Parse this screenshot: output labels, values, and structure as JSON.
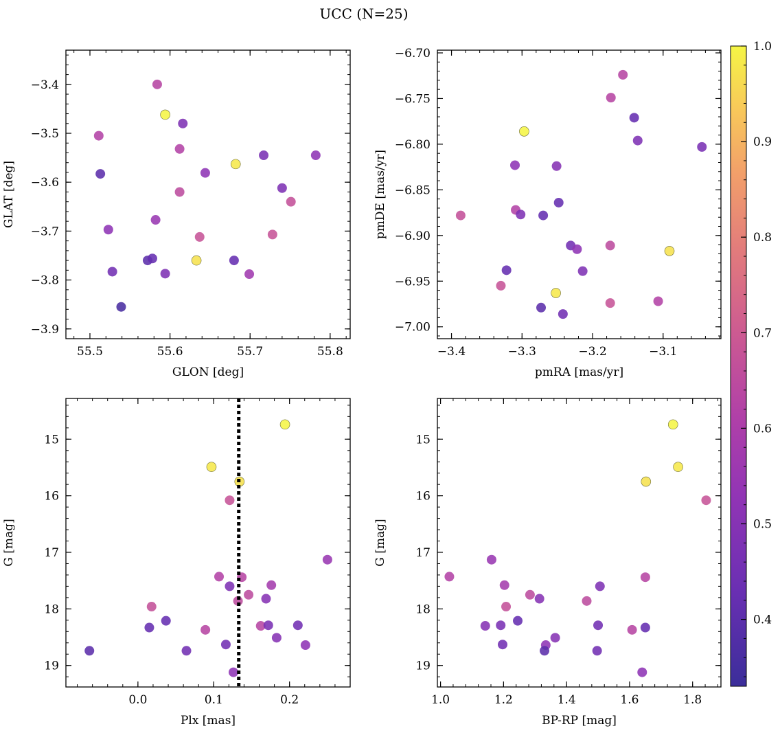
{
  "figure": {
    "title": "UCC (N=25)"
  },
  "colorbar": {
    "range": [
      0.33,
      1.0
    ],
    "ticks": [
      0.4,
      0.5,
      0.6,
      0.7,
      0.8,
      0.9,
      1.0
    ],
    "tick_labels": [
      "0.4",
      "0.5",
      "0.6",
      "0.7",
      "0.8",
      "0.9",
      "1.0"
    ],
    "colormap": "plasma"
  },
  "chart_data": [
    {
      "type": "scatter",
      "xlabel": "GLON [deg]",
      "ylabel": "GLAT [deg]",
      "xlim": [
        55.47,
        55.825
      ],
      "ylim": [
        -3.92,
        -3.33
      ],
      "y_inverted": false,
      "xticks": [
        55.5,
        55.6,
        55.7,
        55.8
      ],
      "xtick_labels": [
        "55.5",
        "55.6",
        "55.7",
        "55.8"
      ],
      "yticks": [
        -3.9,
        -3.8,
        -3.7,
        -3.6,
        -3.5,
        -3.4
      ],
      "ytick_labels": [
        "−3.9",
        "−3.8",
        "−3.7",
        "−3.6",
        "−3.5",
        "−3.4"
      ],
      "points": [
        {
          "x": 55.584,
          "y": -3.4,
          "c": 0.63
        },
        {
          "x": 55.594,
          "y": -3.462,
          "c": 1.0
        },
        {
          "x": 55.616,
          "y": -3.48,
          "c": 0.48
        },
        {
          "x": 55.511,
          "y": -3.505,
          "c": 0.62
        },
        {
          "x": 55.612,
          "y": -3.532,
          "c": 0.62
        },
        {
          "x": 55.717,
          "y": -3.545,
          "c": 0.47
        },
        {
          "x": 55.782,
          "y": -3.545,
          "c": 0.52
        },
        {
          "x": 55.682,
          "y": -3.563,
          "c": 0.98
        },
        {
          "x": 55.513,
          "y": -3.583,
          "c": 0.4
        },
        {
          "x": 55.644,
          "y": -3.581,
          "c": 0.52
        },
        {
          "x": 55.74,
          "y": -3.612,
          "c": 0.48
        },
        {
          "x": 55.612,
          "y": -3.62,
          "c": 0.65
        },
        {
          "x": 55.751,
          "y": -3.64,
          "c": 0.67
        },
        {
          "x": 55.582,
          "y": -3.677,
          "c": 0.55
        },
        {
          "x": 55.523,
          "y": -3.697,
          "c": 0.52
        },
        {
          "x": 55.637,
          "y": -3.712,
          "c": 0.68
        },
        {
          "x": 55.728,
          "y": -3.707,
          "c": 0.68
        },
        {
          "x": 55.572,
          "y": -3.76,
          "c": 0.4
        },
        {
          "x": 55.578,
          "y": -3.756,
          "c": 0.42
        },
        {
          "x": 55.633,
          "y": -3.76,
          "c": 0.97
        },
        {
          "x": 55.68,
          "y": -3.76,
          "c": 0.42
        },
        {
          "x": 55.528,
          "y": -3.783,
          "c": 0.45
        },
        {
          "x": 55.594,
          "y": -3.787,
          "c": 0.48
        },
        {
          "x": 55.699,
          "y": -3.788,
          "c": 0.57
        },
        {
          "x": 55.539,
          "y": -3.855,
          "c": 0.36
        }
      ]
    },
    {
      "type": "scatter",
      "xlabel": "pmRA [mas/yr]",
      "ylabel": "pmDE [mas/yr]",
      "xlim": [
        -3.42,
        -3.018
      ],
      "ylim": [
        -7.013,
        -6.697
      ],
      "y_inverted": false,
      "xticks": [
        -3.4,
        -3.3,
        -3.2,
        -3.1
      ],
      "xtick_labels": [
        "−3.4",
        "−3.3",
        "−3.2",
        "−3.1"
      ],
      "yticks": [
        -7.0,
        -6.95,
        -6.9,
        -6.85,
        -6.8,
        -6.75,
        -6.7
      ],
      "ytick_labels": [
        "−7.00",
        "−6.95",
        "−6.90",
        "−6.85",
        "−6.80",
        "−6.75",
        "−6.70"
      ],
      "points": [
        {
          "x": -3.157,
          "y": -6.724,
          "c": 0.63
        },
        {
          "x": -3.174,
          "y": -6.749,
          "c": 0.63
        },
        {
          "x": -3.141,
          "y": -6.771,
          "c": 0.42
        },
        {
          "x": -3.297,
          "y": -6.786,
          "c": 1.0
        },
        {
          "x": -3.136,
          "y": -6.796,
          "c": 0.48
        },
        {
          "x": -3.045,
          "y": -6.803,
          "c": 0.47
        },
        {
          "x": -3.31,
          "y": -6.823,
          "c": 0.52
        },
        {
          "x": -3.251,
          "y": -6.824,
          "c": 0.5
        },
        {
          "x": -3.248,
          "y": -6.864,
          "c": 0.42
        },
        {
          "x": -3.309,
          "y": -6.872,
          "c": 0.62
        },
        {
          "x": -3.302,
          "y": -6.877,
          "c": 0.48
        },
        {
          "x": -3.387,
          "y": -6.878,
          "c": 0.67
        },
        {
          "x": -3.27,
          "y": -6.878,
          "c": 0.42
        },
        {
          "x": -3.231,
          "y": -6.911,
          "c": 0.45
        },
        {
          "x": -3.222,
          "y": -6.915,
          "c": 0.52
        },
        {
          "x": -3.175,
          "y": -6.911,
          "c": 0.65
        },
        {
          "x": -3.091,
          "y": -6.917,
          "c": 0.97
        },
        {
          "x": -3.322,
          "y": -6.938,
          "c": 0.42
        },
        {
          "x": -3.214,
          "y": -6.939,
          "c": 0.48
        },
        {
          "x": -3.33,
          "y": -6.955,
          "c": 0.68
        },
        {
          "x": -3.252,
          "y": -6.963,
          "c": 0.98
        },
        {
          "x": -3.175,
          "y": -6.974,
          "c": 0.68
        },
        {
          "x": -3.107,
          "y": -6.972,
          "c": 0.62
        },
        {
          "x": -3.273,
          "y": -6.979,
          "c": 0.4
        },
        {
          "x": -3.242,
          "y": -6.986,
          "c": 0.45
        }
      ]
    },
    {
      "type": "scatter",
      "xlabel": "Plx [mas]",
      "ylabel": "G [mag]",
      "xlim": [
        -0.095,
        0.28
      ],
      "ylim": [
        19.38,
        14.28
      ],
      "y_inverted": true,
      "xticks": [
        0.0,
        0.1,
        0.2
      ],
      "xtick_labels": [
        "0.0",
        "0.1",
        "0.2"
      ],
      "yticks": [
        15,
        16,
        17,
        18,
        19
      ],
      "ytick_labels": [
        "15",
        "16",
        "17",
        "18",
        "19"
      ],
      "vline": {
        "x": 0.133,
        "style": "dotted",
        "color": "#000000"
      },
      "points": [
        {
          "x": 0.194,
          "y": 14.74,
          "c": 1.0
        },
        {
          "x": 0.097,
          "y": 15.49,
          "c": 0.98
        },
        {
          "x": 0.134,
          "y": 15.75,
          "c": 0.97
        },
        {
          "x": 0.121,
          "y": 16.08,
          "c": 0.68
        },
        {
          "x": 0.25,
          "y": 17.13,
          "c": 0.55
        },
        {
          "x": 0.107,
          "y": 17.43,
          "c": 0.62
        },
        {
          "x": 0.137,
          "y": 17.44,
          "c": 0.63
        },
        {
          "x": 0.121,
          "y": 17.6,
          "c": 0.48
        },
        {
          "x": 0.176,
          "y": 17.58,
          "c": 0.58
        },
        {
          "x": 0.146,
          "y": 17.75,
          "c": 0.65
        },
        {
          "x": 0.169,
          "y": 17.82,
          "c": 0.5
        },
        {
          "x": 0.132,
          "y": 17.86,
          "c": 0.65
        },
        {
          "x": 0.018,
          "y": 17.96,
          "c": 0.67
        },
        {
          "x": 0.037,
          "y": 18.21,
          "c": 0.42
        },
        {
          "x": 0.015,
          "y": 18.33,
          "c": 0.42
        },
        {
          "x": 0.162,
          "y": 18.3,
          "c": 0.63
        },
        {
          "x": 0.172,
          "y": 18.29,
          "c": 0.47
        },
        {
          "x": 0.211,
          "y": 18.29,
          "c": 0.45
        },
        {
          "x": 0.089,
          "y": 18.37,
          "c": 0.63
        },
        {
          "x": 0.183,
          "y": 18.51,
          "c": 0.5
        },
        {
          "x": 0.116,
          "y": 18.63,
          "c": 0.45
        },
        {
          "x": 0.221,
          "y": 18.64,
          "c": 0.52
        },
        {
          "x": -0.064,
          "y": 18.74,
          "c": 0.4
        },
        {
          "x": 0.064,
          "y": 18.74,
          "c": 0.45
        },
        {
          "x": 0.126,
          "y": 19.12,
          "c": 0.52
        }
      ]
    },
    {
      "type": "scatter",
      "xlabel": "BP-RP [mag]",
      "ylabel": "G [mag]",
      "xlim": [
        0.99,
        1.89
      ],
      "ylim": [
        19.38,
        14.28
      ],
      "y_inverted": true,
      "xticks": [
        1.0,
        1.2,
        1.4,
        1.6,
        1.8
      ],
      "xtick_labels": [
        "1.0",
        "1.2",
        "1.4",
        "1.6",
        "1.8"
      ],
      "yticks": [
        15,
        16,
        17,
        18,
        19
      ],
      "ytick_labels": [
        "15",
        "16",
        "17",
        "18",
        "19"
      ],
      "points": [
        {
          "x": 1.738,
          "y": 14.74,
          "c": 1.0
        },
        {
          "x": 1.754,
          "y": 15.49,
          "c": 0.98
        },
        {
          "x": 1.652,
          "y": 15.75,
          "c": 0.97
        },
        {
          "x": 1.843,
          "y": 16.08,
          "c": 0.68
        },
        {
          "x": 1.162,
          "y": 17.13,
          "c": 0.55
        },
        {
          "x": 1.028,
          "y": 17.43,
          "c": 0.62
        },
        {
          "x": 1.65,
          "y": 17.44,
          "c": 0.63
        },
        {
          "x": 1.203,
          "y": 17.58,
          "c": 0.58
        },
        {
          "x": 1.506,
          "y": 17.6,
          "c": 0.48
        },
        {
          "x": 1.284,
          "y": 17.75,
          "c": 0.65
        },
        {
          "x": 1.314,
          "y": 17.82,
          "c": 0.5
        },
        {
          "x": 1.464,
          "y": 17.86,
          "c": 0.65
        },
        {
          "x": 1.208,
          "y": 17.96,
          "c": 0.67
        },
        {
          "x": 1.245,
          "y": 18.21,
          "c": 0.42
        },
        {
          "x": 1.142,
          "y": 18.3,
          "c": 0.5
        },
        {
          "x": 1.191,
          "y": 18.29,
          "c": 0.47
        },
        {
          "x": 1.5,
          "y": 18.29,
          "c": 0.45
        },
        {
          "x": 1.65,
          "y": 18.33,
          "c": 0.42
        },
        {
          "x": 1.608,
          "y": 18.37,
          "c": 0.63
        },
        {
          "x": 1.364,
          "y": 18.51,
          "c": 0.5
        },
        {
          "x": 1.197,
          "y": 18.63,
          "c": 0.45
        },
        {
          "x": 1.334,
          "y": 18.64,
          "c": 0.52
        },
        {
          "x": 1.33,
          "y": 18.74,
          "c": 0.4
        },
        {
          "x": 1.497,
          "y": 18.74,
          "c": 0.45
        },
        {
          "x": 1.64,
          "y": 19.12,
          "c": 0.52
        }
      ]
    }
  ]
}
